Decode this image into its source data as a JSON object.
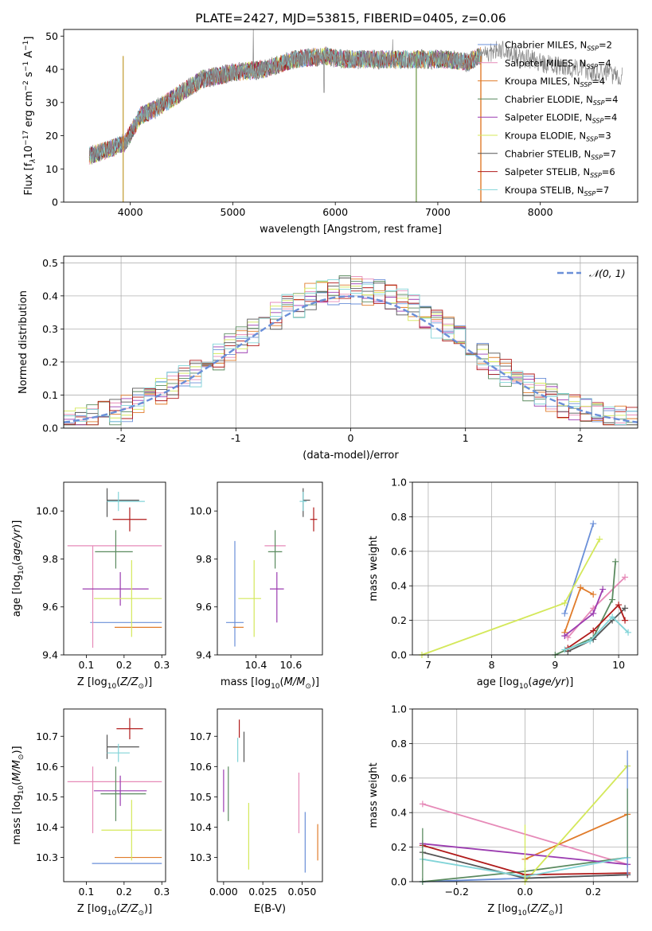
{
  "colors": {
    "Chabrier MILES": "#6a8fd8",
    "Salpeter MILES": "#e68ab8",
    "Kroupa MILES": "#e07b2a",
    "Chabrier ELODIE": "#5a8a5f",
    "Salpeter ELODIE": "#9b3cb0",
    "Kroupa ELODIE": "#d4e85a",
    "Chabrier STELIB": "#555555",
    "Salpeter STELIB": "#b01a1a",
    "Kroupa STELIB": "#82d4d8"
  },
  "chart_data": [
    {
      "id": "spectrum",
      "type": "line",
      "title": "PLATE=2427, MJD=53815, FIBERID=0405, z=0.06",
      "xlabel": "wavelength [Angstrom, rest frame]",
      "ylabel": "Flux [fλ10⁻¹⁷ erg cm⁻² s⁻¹ A⁻¹]",
      "xlim": [
        3350,
        8950
      ],
      "ylim": [
        0,
        52
      ],
      "xticks": [
        4000,
        5000,
        6000,
        7000,
        8000
      ],
      "yticks": [
        0,
        10,
        20,
        30,
        40,
        50
      ],
      "observed_trend": {
        "x": [
          3600,
          3800,
          3950,
          4100,
          4300,
          4500,
          4700,
          5000,
          5300,
          5600,
          5900,
          6100,
          6300,
          6600,
          6900,
          7100,
          7300,
          7400,
          7600,
          7800,
          8000,
          8200,
          8400,
          8600,
          8800
        ],
        "y": [
          14,
          16,
          18,
          26,
          29,
          33,
          37,
          39,
          40,
          43,
          44,
          43,
          43,
          43,
          43,
          43,
          42,
          44,
          46,
          44,
          42,
          41,
          40,
          39,
          38
        ]
      },
      "legend": [
        {
          "name": "Chabrier MILES",
          "label": "Chabrier MILES, N",
          "sub": "SSP",
          "n": "=2"
        },
        {
          "name": "Salpeter MILES",
          "label": "Salpeter MILES, N",
          "sub": "SSP",
          "n": "=4"
        },
        {
          "name": "Kroupa MILES",
          "label": "Kroupa MILES, N",
          "sub": "SSP",
          "n": "=4"
        },
        {
          "name": "Chabrier ELODIE",
          "label": "Chabrier ELODIE, N",
          "sub": "SSP",
          "n": "=4"
        },
        {
          "name": "Salpeter ELODIE",
          "label": "Salpeter ELODIE, N",
          "sub": "SSP",
          "n": "=4"
        },
        {
          "name": "Kroupa ELODIE",
          "label": "Kroupa ELODIE, N",
          "sub": "SSP",
          "n": "=3"
        },
        {
          "name": "Chabrier STELIB",
          "label": "Chabrier STELIB, N",
          "sub": "SSP",
          "n": "=7"
        },
        {
          "name": "Salpeter STELIB",
          "label": "Salpeter STELIB, N",
          "sub": "SSP",
          "n": "=6"
        },
        {
          "name": "Kroupa STELIB",
          "label": "Kroupa STELIB, N",
          "sub": "SSP",
          "n": "=7"
        }
      ],
      "legend_position": "right"
    },
    {
      "id": "residuals",
      "type": "histogram",
      "xlabel": "(data-model)/error",
      "ylabel": "Normed distribution",
      "xlim": [
        -2.5,
        2.5
      ],
      "ylim": [
        0,
        0.52
      ],
      "xticks": [
        -2,
        -1,
        0,
        1,
        2
      ],
      "yticks": [
        0.0,
        0.1,
        0.2,
        0.3,
        0.4,
        0.5
      ],
      "reference_curve": "N(0,1)",
      "legend": [
        "𝒩(0, 1)"
      ],
      "legend_position": "top-right",
      "grid": true
    },
    {
      "id": "age_vs_Z",
      "type": "errorbar",
      "xlabel": "Z [log10(Z/Z⊙)]",
      "ylabel": "age  [log10(age/yr)]",
      "xlim": [
        0.04,
        0.31
      ],
      "ylim": [
        9.4,
        10.12
      ],
      "xticks": [
        0.1,
        0.2,
        0.3
      ],
      "yticks": [
        9.4,
        9.6,
        9.8,
        10.0
      ],
      "points": [
        {
          "name": "Chabrier MILES",
          "x": 0.215,
          "y": 9.535,
          "xerr": [
            0.105,
            0.085
          ],
          "yerr": [
            0.0,
            0.0
          ]
        },
        {
          "name": "Salpeter MILES",
          "x": 0.117,
          "y": 9.855,
          "xerr": [
            0.067,
            0.183
          ],
          "yerr": [
            0.425,
            0.0
          ]
        },
        {
          "name": "Kroupa MILES",
          "x": 0.225,
          "y": 9.515,
          "xerr": [
            0.05,
            0.075
          ],
          "yerr": [
            0.0,
            0.0
          ]
        },
        {
          "name": "Chabrier ELODIE",
          "x": 0.178,
          "y": 9.83,
          "xerr": [
            0.055,
            0.045
          ],
          "yerr": [
            0.07,
            0.09
          ]
        },
        {
          "name": "Salpeter ELODIE",
          "x": 0.19,
          "y": 9.675,
          "xerr": [
            0.1,
            0.075
          ],
          "yerr": [
            0.07,
            0.07
          ]
        },
        {
          "name": "Kroupa ELODIE",
          "x": 0.22,
          "y": 9.635,
          "xerr": [
            0.1,
            0.08
          ],
          "yerr": [
            0.16,
            0.16
          ]
        },
        {
          "name": "Chabrier STELIB",
          "x": 0.155,
          "y": 10.045,
          "xerr": [
            0.0,
            0.085
          ],
          "yerr": [
            0.07,
            0.05
          ]
        },
        {
          "name": "Salpeter STELIB",
          "x": 0.215,
          "y": 9.965,
          "xerr": [
            0.045,
            0.045
          ],
          "yerr": [
            0.05,
            0.05
          ]
        },
        {
          "name": "Kroupa STELIB",
          "x": 0.185,
          "y": 10.04,
          "xerr": [
            0.03,
            0.07
          ],
          "yerr": [
            0.04,
            0.04
          ]
        }
      ]
    },
    {
      "id": "age_vs_mass",
      "type": "errorbar",
      "xlabel": "mass [log10(M/M⊙)]",
      "ylabel": "",
      "xlim": [
        10.18,
        10.78
      ],
      "ylim": [
        9.4,
        10.12
      ],
      "xticks": [
        10.4,
        10.6
      ],
      "yticks": [
        9.4,
        9.6,
        9.8,
        10.0
      ],
      "points": [
        {
          "name": "Chabrier MILES",
          "x": 10.28,
          "y": 9.535,
          "xerr": [
            0.05,
            0.05
          ],
          "yerr": [
            0.1,
            0.34
          ]
        },
        {
          "name": "Salpeter MILES",
          "x": 10.51,
          "y": 9.855,
          "xerr": [
            0.06,
            0.06
          ],
          "yerr": [
            0.0,
            0.0
          ]
        },
        {
          "name": "Kroupa MILES",
          "x": 10.3,
          "y": 9.515,
          "xerr": [
            0.03,
            0.03
          ],
          "yerr": [
            0.0,
            0.0
          ]
        },
        {
          "name": "Chabrier ELODIE",
          "x": 10.51,
          "y": 9.83,
          "xerr": [
            0.04,
            0.04
          ],
          "yerr": [
            0.07,
            0.09
          ]
        },
        {
          "name": "Salpeter ELODIE",
          "x": 10.52,
          "y": 9.675,
          "xerr": [
            0.04,
            0.04
          ],
          "yerr": [
            0.14,
            0.07
          ]
        },
        {
          "name": "Kroupa ELODIE",
          "x": 10.39,
          "y": 9.635,
          "xerr": [
            0.09,
            0.04
          ],
          "yerr": [
            0.16,
            0.16
          ]
        },
        {
          "name": "Chabrier STELIB",
          "x": 10.67,
          "y": 10.045,
          "xerr": [
            0.0,
            0.04
          ],
          "yerr": [
            0.07,
            0.05
          ]
        },
        {
          "name": "Salpeter STELIB",
          "x": 10.73,
          "y": 9.965,
          "xerr": [
            0.02,
            0.02
          ],
          "yerr": [
            0.05,
            0.05
          ]
        },
        {
          "name": "Kroupa STELIB",
          "x": 10.67,
          "y": 10.04,
          "xerr": [
            0.02,
            0.02
          ],
          "yerr": [
            0.04,
            0.04
          ]
        }
      ]
    },
    {
      "id": "massweight_vs_age",
      "type": "line",
      "xlabel": "age  [log10(age/yr)]",
      "ylabel": "mass weight",
      "xlim": [
        6.75,
        10.3
      ],
      "ylim": [
        0,
        1
      ],
      "xticks": [
        7,
        8,
        9,
        10
      ],
      "yticks": [
        0.0,
        0.2,
        0.4,
        0.6,
        0.8,
        1.0
      ],
      "grid": true,
      "series": [
        {
          "name": "Chabrier MILES",
          "x": [
            9.15,
            9.6
          ],
          "y": [
            0.24,
            0.76
          ]
        },
        {
          "name": "Salpeter MILES",
          "x": [
            9.2,
            9.6,
            10.1
          ],
          "y": [
            0.1,
            0.27,
            0.45
          ]
        },
        {
          "name": "Kroupa MILES",
          "x": [
            9.15,
            9.4,
            9.6
          ],
          "y": [
            0.13,
            0.39,
            0.35
          ]
        },
        {
          "name": "Chabrier ELODIE",
          "x": [
            9.0,
            9.6,
            9.9,
            9.95
          ],
          "y": [
            0.0,
            0.1,
            0.32,
            0.54
          ]
        },
        {
          "name": "Salpeter ELODIE",
          "x": [
            9.15,
            9.6,
            9.75
          ],
          "y": [
            0.11,
            0.24,
            0.38
          ]
        },
        {
          "name": "Kroupa ELODIE",
          "x": [
            6.9,
            9.15,
            9.7
          ],
          "y": [
            0.0,
            0.3,
            0.67
          ]
        },
        {
          "name": "Chabrier STELIB",
          "x": [
            9.2,
            9.6,
            9.9,
            10.1
          ],
          "y": [
            0.02,
            0.09,
            0.2,
            0.27
          ]
        },
        {
          "name": "Salpeter STELIB",
          "x": [
            9.2,
            9.6,
            10.0,
            10.1
          ],
          "y": [
            0.04,
            0.14,
            0.29,
            0.2
          ]
        },
        {
          "name": "Kroupa STELIB",
          "x": [
            9.15,
            9.55,
            9.9,
            10.15
          ],
          "y": [
            0.03,
            0.08,
            0.22,
            0.13
          ]
        }
      ]
    },
    {
      "id": "mass_vs_Z",
      "type": "errorbar",
      "xlabel": "Z [log10(Z/Z⊙)]",
      "ylabel": "mass [log10(M/M⊙)]",
      "xlim": [
        0.04,
        0.31
      ],
      "ylim": [
        10.22,
        10.79
      ],
      "xticks": [
        0.1,
        0.2,
        0.3
      ],
      "yticks": [
        10.3,
        10.4,
        10.5,
        10.6,
        10.7
      ],
      "points": [
        {
          "name": "Chabrier MILES",
          "x": 0.215,
          "y": 10.28,
          "xerr": [
            0.1,
            0.085
          ],
          "yerr": [
            0.0,
            0.0
          ]
        },
        {
          "name": "Salpeter MILES",
          "x": 0.117,
          "y": 10.55,
          "xerr": [
            0.067,
            0.183
          ],
          "yerr": [
            0.17,
            0.05
          ]
        },
        {
          "name": "Kroupa MILES",
          "x": 0.225,
          "y": 10.3,
          "xerr": [
            0.05,
            0.075
          ],
          "yerr": [
            0.0,
            0.0
          ]
        },
        {
          "name": "Chabrier ELODIE",
          "x": 0.178,
          "y": 10.51,
          "xerr": [
            0.04,
            0.08
          ],
          "yerr": [
            0.09,
            0.09
          ]
        },
        {
          "name": "Salpeter ELODIE",
          "x": 0.19,
          "y": 10.52,
          "xerr": [
            0.07,
            0.07
          ],
          "yerr": [
            0.05,
            0.05
          ]
        },
        {
          "name": "Kroupa ELODIE",
          "x": 0.22,
          "y": 10.39,
          "xerr": [
            0.08,
            0.08
          ],
          "yerr": [
            0.1,
            0.1
          ]
        },
        {
          "name": "Chabrier STELIB",
          "x": 0.155,
          "y": 10.665,
          "xerr": [
            0.0,
            0.085
          ],
          "yerr": [
            0.04,
            0.04
          ]
        },
        {
          "name": "Salpeter STELIB",
          "x": 0.215,
          "y": 10.725,
          "xerr": [
            0.035,
            0.035
          ],
          "yerr": [
            0.035,
            0.035
          ]
        },
        {
          "name": "Kroupa STELIB",
          "x": 0.185,
          "y": 10.645,
          "xerr": [
            0.03,
            0.03
          ],
          "yerr": [
            0.03,
            0.03
          ]
        }
      ]
    },
    {
      "id": "mass_vs_ebv",
      "type": "errorbar",
      "xlabel": "E(B-V)",
      "ylabel": "",
      "xlim": [
        -0.004,
        0.063
      ],
      "ylim": [
        10.22,
        10.79
      ],
      "xticks": [
        0.0,
        0.025,
        0.05
      ],
      "xticklabels": [
        "0.000",
        "0.025",
        "0.050"
      ],
      "yticks": [
        10.3,
        10.4,
        10.5,
        10.6,
        10.7
      ],
      "points": [
        {
          "name": "Chabrier MILES",
          "x": 0.052,
          "y": 10.35,
          "xerr": [
            0,
            0
          ],
          "yerr": [
            0.1,
            0.1
          ]
        },
        {
          "name": "Salpeter MILES",
          "x": 0.048,
          "y": 10.48,
          "xerr": [
            0,
            0
          ],
          "yerr": [
            0.1,
            0.1
          ]
        },
        {
          "name": "Kroupa MILES",
          "x": 0.06,
          "y": 10.35,
          "xerr": [
            0,
            0
          ],
          "yerr": [
            0.06,
            0.06
          ]
        },
        {
          "name": "Chabrier ELODIE",
          "x": 0.003,
          "y": 10.51,
          "xerr": [
            0,
            0
          ],
          "yerr": [
            0.09,
            0.09
          ]
        },
        {
          "name": "Salpeter ELODIE",
          "x": 0.0,
          "y": 10.52,
          "xerr": [
            0,
            0
          ],
          "yerr": [
            0.07,
            0.07
          ]
        },
        {
          "name": "Kroupa ELODIE",
          "x": 0.016,
          "y": 10.37,
          "xerr": [
            0,
            0
          ],
          "yerr": [
            0.11,
            0.11
          ]
        },
        {
          "name": "Chabrier STELIB",
          "x": 0.013,
          "y": 10.665,
          "xerr": [
            0,
            0
          ],
          "yerr": [
            0.05,
            0.05
          ]
        },
        {
          "name": "Salpeter STELIB",
          "x": 0.01,
          "y": 10.725,
          "xerr": [
            0,
            0
          ],
          "yerr": [
            0.03,
            0.03
          ]
        },
        {
          "name": "Kroupa STELIB",
          "x": 0.009,
          "y": 10.655,
          "xerr": [
            0,
            0
          ],
          "yerr": [
            0.04,
            0.04
          ]
        }
      ]
    },
    {
      "id": "massweight_vs_Z",
      "type": "line",
      "xlabel": "Z [log10(Z/Z⊙)]",
      "ylabel": "mass weight",
      "xlim": [
        -0.33,
        0.33
      ],
      "ylim": [
        0,
        1
      ],
      "xticks": [
        -0.2,
        0.0,
        0.2
      ],
      "xticklabels": [
        "−0.2",
        "0.0",
        "0.2"
      ],
      "yticks": [
        0.0,
        0.2,
        0.4,
        0.6,
        0.8,
        1.0
      ],
      "grid": true,
      "series": [
        {
          "name": "Chabrier MILES",
          "x": [
            -0.3,
            0.3
          ],
          "y": [
            0.0,
            0.04
          ]
        },
        {
          "name": "Salpeter MILES",
          "x": [
            -0.3,
            0.3
          ],
          "y": [
            0.45,
            0.1
          ]
        },
        {
          "name": "Kroupa MILES",
          "x": [
            0.0,
            0.3
          ],
          "y": [
            0.13,
            0.39
          ]
        },
        {
          "name": "Chabrier ELODIE",
          "x": [
            -0.3,
            0.0,
            0.3
          ],
          "y": [
            0.0,
            0.06,
            0.14
          ]
        },
        {
          "name": "Salpeter ELODIE",
          "x": [
            -0.3,
            0.3
          ],
          "y": [
            0.22,
            0.1
          ]
        },
        {
          "name": "Kroupa ELODIE",
          "x": [
            0.0,
            0.3
          ],
          "y": [
            0.0,
            0.67
          ]
        },
        {
          "name": "Chabrier STELIB",
          "x": [
            -0.3,
            0.0,
            0.3
          ],
          "y": [
            0.17,
            0.02,
            0.04
          ]
        },
        {
          "name": "Salpeter STELIB",
          "x": [
            -0.3,
            0.0,
            0.3
          ],
          "y": [
            0.21,
            0.04,
            0.05
          ]
        },
        {
          "name": "Kroupa STELIB",
          "x": [
            -0.3,
            0.0,
            0.3
          ],
          "y": [
            0.13,
            0.03,
            0.14
          ]
        }
      ],
      "vertical_errorbars": [
        {
          "name": "Chabrier MILES",
          "x": 0.3,
          "y": [
            0.04,
            0.76
          ]
        },
        {
          "name": "Kroupa ELODIE",
          "x": 0.0,
          "y": [
            0.0,
            0.33
          ]
        },
        {
          "name": "Chabrier ELODIE",
          "x": -0.3,
          "y": [
            0.0,
            0.31
          ]
        },
        {
          "name": "Chabrier ELODIE",
          "x": 0.3,
          "y": [
            0.14,
            0.54
          ]
        }
      ]
    }
  ]
}
